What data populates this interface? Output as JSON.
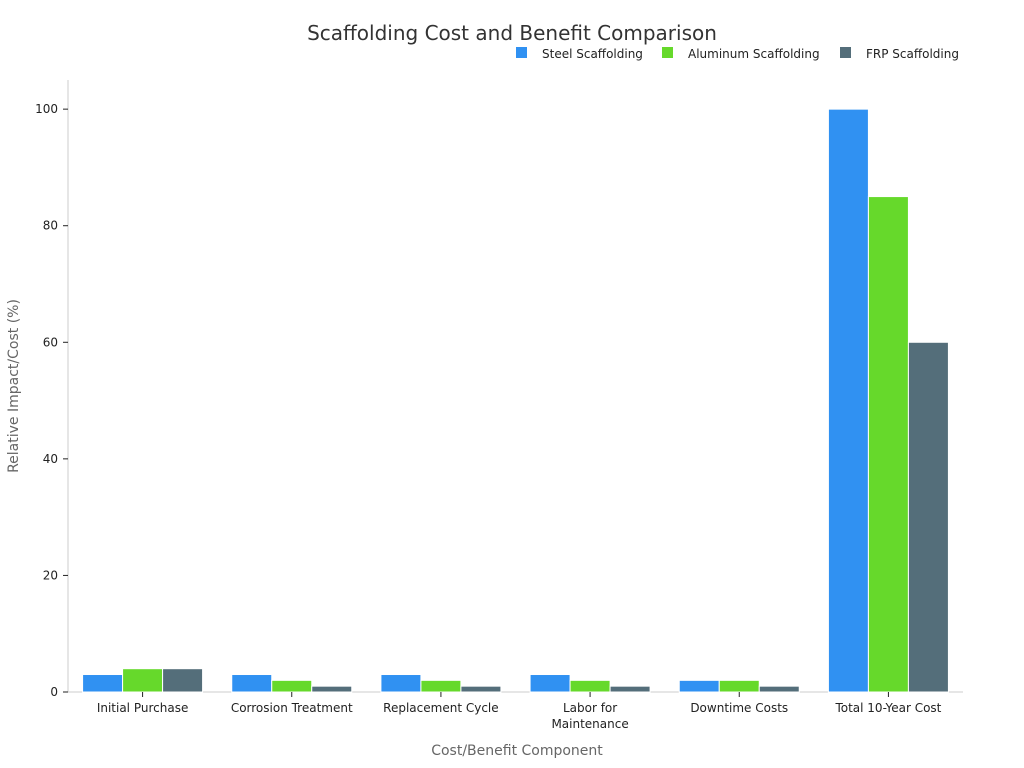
{
  "chart_data": {
    "type": "bar",
    "title": "Scaffolding Cost and Benefit Comparison",
    "xlabel": "Cost/Benefit Component",
    "ylabel": "Relative Impact/Cost (%)",
    "categories": [
      [
        "Initial Purchase"
      ],
      [
        "Corrosion Treatment"
      ],
      [
        "Replacement Cycle"
      ],
      [
        "Labor for",
        "Maintenance"
      ],
      [
        "Downtime Costs"
      ],
      [
        "Total 10-Year Cost"
      ]
    ],
    "series": [
      {
        "name": "Steel Scaffolding",
        "color": "#3091f2",
        "values": [
          3,
          3,
          3,
          3,
          2,
          100
        ]
      },
      {
        "name": "Aluminum Scaffolding",
        "color": "#66d92b",
        "values": [
          4,
          2,
          2,
          2,
          2,
          85
        ]
      },
      {
        "name": "FRP Scaffolding",
        "color": "#546e7a",
        "values": [
          4,
          1,
          1,
          1,
          1,
          60
        ]
      }
    ],
    "ylim": [
      0,
      105
    ],
    "yticks": [
      0,
      20,
      40,
      60,
      80,
      100
    ],
    "legend_position": "top-right",
    "grid": false
  }
}
